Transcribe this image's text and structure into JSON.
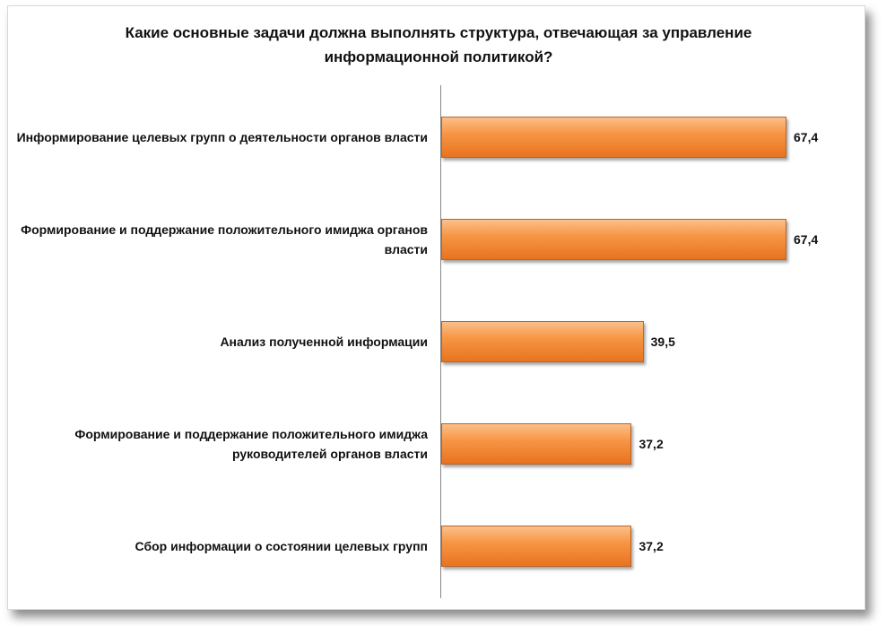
{
  "chart_data": {
    "type": "bar",
    "orientation": "horizontal",
    "title": "Какие основные задачи должна выполнять структура, отвечающая за управление информационной политикой?",
    "categories": [
      "Информирование целевых групп о деятельности органов власти",
      "Формирование и поддержание положительного имиджа органов власти",
      "Анализ полученной информации",
      "Формирование и поддержание положительного имиджа руководителей органов власти",
      "Сбор информации о состоянии целевых групп"
    ],
    "values": [
      67.4,
      67.4,
      39.5,
      37.2,
      37.2
    ],
    "value_labels": [
      "67,4",
      "67,4",
      "39,5",
      "37,2",
      "37,2"
    ],
    "color": "#f79646"
  }
}
